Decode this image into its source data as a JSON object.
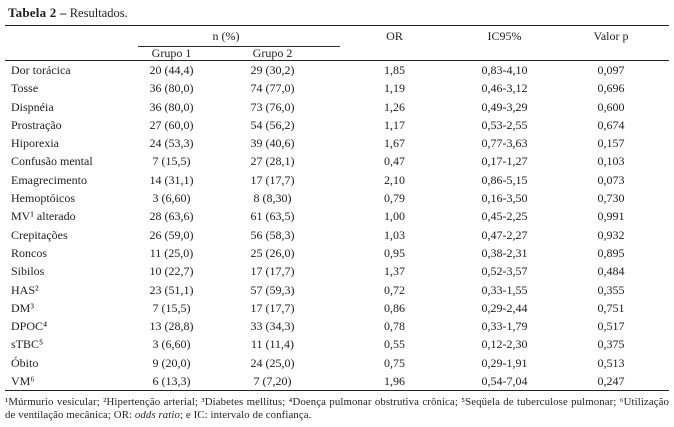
{
  "title": {
    "bold": "Tabela 2 –",
    "rest": " Resultados."
  },
  "header": {
    "n_pct": "n (%)",
    "group1": "Grupo 1",
    "group2": "Grupo 2",
    "or": "OR",
    "ic": "IC95%",
    "p": "Valor p"
  },
  "rows": [
    {
      "label": "Dor torácica",
      "g1": "20 (44,4)",
      "g2": "29 (30,2)",
      "or": "1,85",
      "ic": "0,83-4,10",
      "p": "0,097"
    },
    {
      "label": "Tosse",
      "g1": "36 (80,0)",
      "g2": "74 (77,0)",
      "or": "1,19",
      "ic": "0,46-3,12",
      "p": "0,696"
    },
    {
      "label": "Dispnéia",
      "g1": "36 (80,0)",
      "g2": "73 (76,0)",
      "or": "1,26",
      "ic": "0,49-3,29",
      "p": "0,600"
    },
    {
      "label": "Prostração",
      "g1": "27 (60,0)",
      "g2": "54 (56,2)",
      "or": "1,17",
      "ic": "0,53-2,55",
      "p": "0,674"
    },
    {
      "label": "Hiporexia",
      "g1": "24 (53,3)",
      "g2": "39 (40,6)",
      "or": "1,67",
      "ic": "0,77-3,63",
      "p": "0,157"
    },
    {
      "label": "Confusão mental",
      "g1": "7 (15,5)",
      "g2": "27 (28,1)",
      "or": "0,47",
      "ic": "0,17-1,27",
      "p": "0,103"
    },
    {
      "label": "Emagrecimento",
      "g1": "14 (31,1)",
      "g2": "17 (17,7)",
      "or": "2,10",
      "ic": "0,86-5,15",
      "p": "0,073"
    },
    {
      "label": "Hemoptóicos",
      "g1": "3 (6,60)",
      "g2": "8 (8,30)",
      "or": "0,79",
      "ic": "0,16-3,50",
      "p": "0,730"
    },
    {
      "label": "MV¹ alterado",
      "g1": "28 (63,6)",
      "g2": "61 (63,5)",
      "or": "1,00",
      "ic": "0,45-2,25",
      "p": "0,991"
    },
    {
      "label": "Crepitações",
      "g1": "26 (59,0)",
      "g2": "56 (58,3)",
      "or": "1,03",
      "ic": "0,47-2,27",
      "p": "0,932"
    },
    {
      "label": "Roncos",
      "g1": "11 (25,0)",
      "g2": "25 (26,0)",
      "or": "0,95",
      "ic": "0,38-2,31",
      "p": "0,895"
    },
    {
      "label": "Sibilos",
      "g1": "10 (22,7)",
      "g2": "17 (17,7)",
      "or": "1,37",
      "ic": "0,52-3,57",
      "p": "0,484"
    },
    {
      "label": "HAS²",
      "g1": "23 (51,1)",
      "g2": "57 (59,3)",
      "or": "0,72",
      "ic": "0,33-1,55",
      "p": "0,355"
    },
    {
      "label": "DM³",
      "g1": "7 (15,5)",
      "g2": "17 (17,7)",
      "or": "0,86",
      "ic": "0,29-2,44",
      "p": "0,751"
    },
    {
      "label": "DPOC⁴",
      "g1": "13 (28,8)",
      "g2": "33 (34,3)",
      "or": "0,78",
      "ic": "0,33-1,79",
      "p": "0,517"
    },
    {
      "label": "sTBC⁵",
      "g1": "3 (6,60)",
      "g2": "11 (11,4)",
      "or": "0,55",
      "ic": "0,12-2,30",
      "p": "0,375"
    },
    {
      "label": "Óbito",
      "g1": "9 (20,0)",
      "g2": "24 (25,0)",
      "or": "0,75",
      "ic": "0,29-1,91",
      "p": "0,513"
    },
    {
      "label": "VM⁶",
      "g1": "6 (13,3)",
      "g2": "7 (7,20)",
      "or": "1,96",
      "ic": "0,54-7,04",
      "p": "0,247"
    }
  ],
  "footnote": {
    "before_italic": "¹Múrmurio vesicular; ²Hipertenção arterial; ³Diabetes mellitus; ⁴Doença pulmonar obstrutiva crônica; ⁵Seqüela de tuberculose pulmonar; ⁶Utilização de ventilação mecânica; OR: ",
    "italic": "odds ratio",
    "after_italic": "; e IC: intervalo de confiança."
  }
}
